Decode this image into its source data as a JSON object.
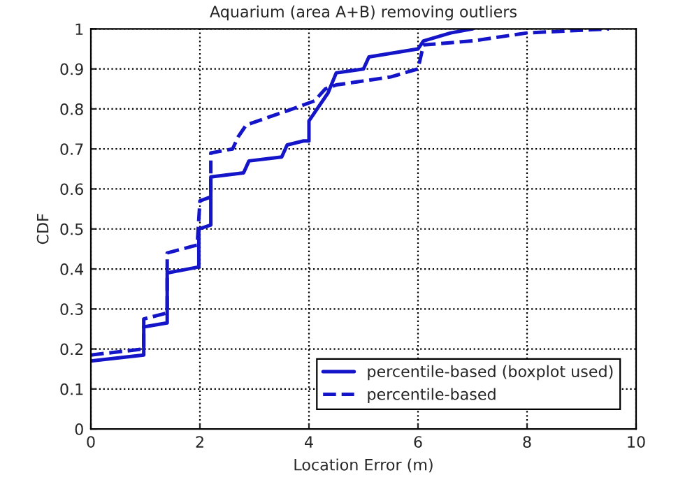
{
  "chart_data": {
    "type": "line",
    "title": "Aquarium (area A+B) removing outliers",
    "xlabel": "Location Error (m)",
    "ylabel": "CDF",
    "xlim": [
      0,
      10
    ],
    "xticks": [
      0,
      2,
      4,
      6,
      8,
      10
    ],
    "ylim": [
      0,
      1
    ],
    "yticks": [
      0,
      0.1,
      0.2,
      0.3,
      0.4,
      0.5,
      0.6,
      0.7,
      0.8,
      0.9,
      1
    ],
    "grid": true,
    "legend": "bottom right",
    "series": [
      {
        "name": "percentile-based (boxplot used)",
        "color": "#1414c8",
        "line_style": "solid",
        "x": [
          0,
          0.97,
          0.97,
          1.4,
          1.4,
          1.98,
          1.98,
          2.2,
          2.2,
          2.8,
          2.9,
          3.5,
          3.6,
          3.9,
          4.0,
          4.0,
          4.2,
          4.35,
          4.5,
          5.0,
          5.1,
          6.0,
          6.1,
          6.6,
          7.0
        ],
        "values": [
          0.17,
          0.185,
          0.255,
          0.265,
          0.39,
          0.405,
          0.5,
          0.51,
          0.63,
          0.64,
          0.67,
          0.68,
          0.71,
          0.72,
          0.72,
          0.77,
          0.81,
          0.84,
          0.89,
          0.9,
          0.93,
          0.95,
          0.97,
          0.99,
          1.0
        ]
      },
      {
        "name": "percentile-based",
        "color": "#1414c8",
        "line_style": "dashed",
        "x": [
          0,
          0.97,
          0.97,
          1.4,
          1.4,
          1.95,
          2.0,
          2.2,
          2.2,
          2.6,
          2.7,
          2.85,
          3.7,
          4.1,
          4.3,
          4.5,
          5.0,
          5.5,
          6.0,
          6.1,
          7.0,
          8.0,
          9.5
        ],
        "values": [
          0.185,
          0.2,
          0.275,
          0.29,
          0.44,
          0.46,
          0.57,
          0.58,
          0.69,
          0.7,
          0.73,
          0.76,
          0.8,
          0.82,
          0.85,
          0.86,
          0.87,
          0.88,
          0.9,
          0.96,
          0.97,
          0.99,
          1.0
        ]
      }
    ]
  }
}
